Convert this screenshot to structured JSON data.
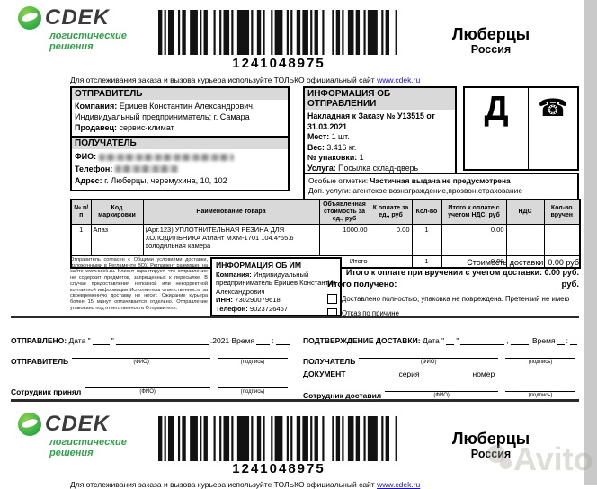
{
  "header": {
    "brand": "CDEK",
    "tagline1": "логистические",
    "tagline2": "решения",
    "barcode_number": "1241048975",
    "city": "Люберцы",
    "country": "Россия",
    "tracking_prefix": "Для отслеживания заказа и вызова курьера используйте ТОЛЬКО официальный сайт ",
    "tracking_link": "www.cdek.ru"
  },
  "sender": {
    "title": "ОТПРАВИТЕЛЬ",
    "company_label": "Компания:",
    "company_value": "Ерицев Константин Александрович, Индивидуальный предприниматель; г. Самара",
    "seller_label": "Продавец:",
    "seller_value": "сервис-климат"
  },
  "receiver": {
    "title": "ПОЛУЧАТЕЛЬ",
    "fio_label": "ФИО:",
    "phone_label": "Телефон:",
    "address_label": "Адрес:",
    "address_value": "г. Люберцы, черемухина, 10, 102"
  },
  "shipment": {
    "title": "ИНФОРМАЦИЯ ОБ ОТПРАВЛЕНИИ",
    "invoice_line": "Накладная к Заказу № У13515 от 31.03.2021",
    "places_label": "Мест:",
    "places_value": "1 шт.",
    "weight_label": "Вес:",
    "weight_value": "3.416 кг.",
    "package_label": "№ упаковки:",
    "package_value": "1",
    "service_label": "Услуга:",
    "service_value": "Посылка склад-дверь",
    "mode_letter": "Д",
    "phone_icon": "☎"
  },
  "notes": {
    "special_label": "Особые отметки:",
    "special_value": "Частичная выдача не предусмотрена",
    "services_label": "Доп. услуги:",
    "services_value": "агентское вознаграждение,прозвон,страхование"
  },
  "items": {
    "headers": [
      "№ п/п",
      "Код маркировки",
      "Наименование товара",
      "Объявленная стоимость за ед., руб",
      "К оплате за ед., руб",
      "Кол-во",
      "Итого к оплате с учетом НДС, руб",
      "НДС",
      "Кол-во вручен"
    ],
    "row": {
      "num": "1",
      "code": "Апаз",
      "name": "(Арт.123) УПЛОТНИТЕЛЬНАЯ РЕЗИНА ДЛЯ ХОЛОДИЛЬНИКА Атлант МХМ-1701 104.4*55.6 холодильная камера",
      "declared": "1000.00",
      "to_pay": "0.00",
      "qty": "1",
      "total": "0.00",
      "vat": "",
      "handed": ""
    },
    "total_label": "Итого",
    "total_qty": "1",
    "total_sum": "0.00"
  },
  "terms": "Отправитель согласен с Общими условиями доставки, изложенными в Регламенте ВОУ. Регламент размещен на сайте www.cdek.ru. Клиент гарантирует, что отправление не содержит предметов, запрещенных к пересылке. В случае предоставления неполной или некорректной контактной информации Исполнитель ответственность за своевременную доставку не несет. Ожидание курьера более 15 минут оплачивается отдельно. Отправление упаковано под ответственность Отправителя.",
  "im": {
    "title": "ИНФОРМАЦИЯ ОБ ИМ",
    "company_label": "Компания:",
    "company_value": "Индивидуальный предприниматель Ерицев Константин Александрович",
    "inn_label": "ИНН:",
    "inn_value": "730290079618",
    "phone_label": "Телефон:",
    "phone_value": "9023726467"
  },
  "payment": {
    "delivery_cost_label": "Стоимость доставки:",
    "delivery_cost_value": "0.00 руб",
    "total_due_label": "Итого к оплате при вручении с учетом доставки:",
    "total_due_value": "0.00 руб.",
    "received_label": "Итого получено:",
    "received_suffix": "руб.",
    "check1": "Доставлено полностью, упаковка не повреждена. Претензий не имею",
    "check2": "Отказ по причине"
  },
  "signature": {
    "sent_title": "ОТПРАВЛЕНО:",
    "date_open": "Дата \"",
    "close_quote": "\"",
    "year_time": ".2021 Время",
    "colon": ":",
    "comma": ",",
    "time_word": "Время",
    "sender_label": "ОТПРАВИТЕЛЬ",
    "fio_caption": "(ФИО)",
    "sign_caption": "(подпись)",
    "staff_received": "Сотрудник принял",
    "confirm_title": "ПОДТВЕРЖДЕНИЕ ДОСТАВКИ:",
    "receiver_label": "ПОЛУЧАТЕЛЬ",
    "document_label": "ДОКУМЕНТ",
    "series_label": "серия",
    "number_label": "номер",
    "staff_delivered": "Сотрудник доставил"
  },
  "watermark": {
    "text": "Avito"
  }
}
